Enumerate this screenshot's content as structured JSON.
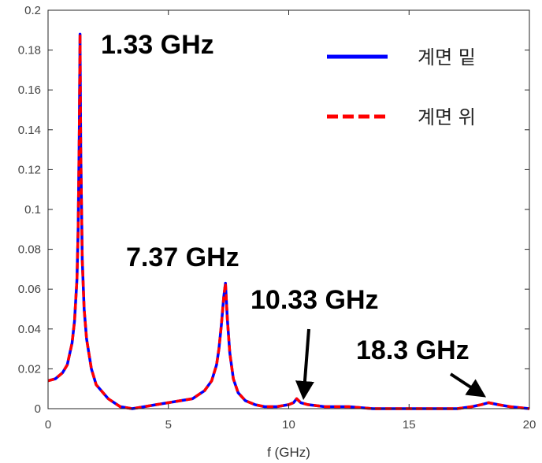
{
  "chart_data": {
    "type": "line",
    "xlabel": "f (GHz)",
    "ylabel": "",
    "xlim": [
      0,
      20
    ],
    "ylim": [
      0,
      0.2
    ],
    "x_ticks": [
      0,
      5,
      10,
      15,
      20
    ],
    "x_tick_labels": [
      "0",
      "5",
      "10",
      "15",
      "20"
    ],
    "y_ticks": [
      0,
      0.02,
      0.04,
      0.06,
      0.08,
      0.1,
      0.12,
      0.14,
      0.16,
      0.18,
      0.2
    ],
    "y_tick_labels": [
      "0",
      "0.02",
      "0.04",
      "0.06",
      "0.08",
      "0.1",
      "0.12",
      "0.14",
      "0.16",
      "0.18",
      "0.2"
    ],
    "grid": false,
    "legend_position": "top-right",
    "series": [
      {
        "name": "계면 밑",
        "color": "#0000ff",
        "style": "solid",
        "x": [
          0,
          0.3,
          0.6,
          0.8,
          1.0,
          1.1,
          1.2,
          1.25,
          1.3,
          1.33,
          1.36,
          1.42,
          1.5,
          1.6,
          1.8,
          2.0,
          2.5,
          3.0,
          3.5,
          4.0,
          4.5,
          5.0,
          5.5,
          6.0,
          6.5,
          6.8,
          7.0,
          7.1,
          7.2,
          7.3,
          7.37,
          7.45,
          7.55,
          7.7,
          7.9,
          8.2,
          8.6,
          9.0,
          9.5,
          10.0,
          10.2,
          10.33,
          10.5,
          10.8,
          11.5,
          12.5,
          13.5,
          15.0,
          16.0,
          17.0,
          17.6,
          18.0,
          18.3,
          18.7,
          19.2,
          20.0
        ],
        "values": [
          0.014,
          0.015,
          0.018,
          0.022,
          0.033,
          0.044,
          0.065,
          0.09,
          0.14,
          0.188,
          0.13,
          0.075,
          0.05,
          0.035,
          0.02,
          0.012,
          0.005,
          0.001,
          0.0,
          0.001,
          0.002,
          0.003,
          0.004,
          0.005,
          0.009,
          0.014,
          0.022,
          0.03,
          0.042,
          0.056,
          0.063,
          0.045,
          0.028,
          0.015,
          0.008,
          0.004,
          0.002,
          0.001,
          0.001,
          0.002,
          0.003,
          0.005,
          0.003,
          0.002,
          0.001,
          0.001,
          0.0,
          0.0,
          0.0,
          0.0,
          0.001,
          0.002,
          0.003,
          0.002,
          0.001,
          0.0
        ]
      },
      {
        "name": "계면 위",
        "color": "#ff0000",
        "style": "dashed",
        "x": [
          0,
          0.3,
          0.6,
          0.8,
          1.0,
          1.1,
          1.2,
          1.25,
          1.3,
          1.33,
          1.36,
          1.42,
          1.5,
          1.6,
          1.8,
          2.0,
          2.5,
          3.0,
          3.5,
          4.0,
          4.5,
          5.0,
          5.5,
          6.0,
          6.5,
          6.8,
          7.0,
          7.1,
          7.2,
          7.3,
          7.37,
          7.45,
          7.55,
          7.7,
          7.9,
          8.2,
          8.6,
          9.0,
          9.5,
          10.0,
          10.2,
          10.33,
          10.5,
          10.8,
          11.5,
          12.5,
          13.5,
          15.0,
          16.0,
          17.0,
          17.6,
          18.0,
          18.3,
          18.7,
          19.2,
          20.0
        ],
        "values": [
          0.014,
          0.015,
          0.018,
          0.022,
          0.033,
          0.044,
          0.065,
          0.09,
          0.14,
          0.188,
          0.13,
          0.075,
          0.05,
          0.035,
          0.02,
          0.012,
          0.005,
          0.001,
          0.0,
          0.001,
          0.002,
          0.003,
          0.004,
          0.005,
          0.009,
          0.014,
          0.022,
          0.03,
          0.042,
          0.056,
          0.063,
          0.045,
          0.028,
          0.015,
          0.008,
          0.004,
          0.002,
          0.001,
          0.001,
          0.002,
          0.003,
          0.005,
          0.003,
          0.002,
          0.001,
          0.001,
          0.0,
          0.0,
          0.0,
          0.0,
          0.001,
          0.002,
          0.003,
          0.002,
          0.001,
          0.0
        ]
      }
    ],
    "annotations": [
      {
        "text": "1.33 GHz",
        "x": 1.33,
        "y": 0.188,
        "arrow": false
      },
      {
        "text": "7.37 GHz",
        "x": 7.37,
        "y": 0.063,
        "arrow": false
      },
      {
        "text": "10.33 GHz",
        "x": 10.33,
        "y": 0.005,
        "arrow": true
      },
      {
        "text": "18.3 GHz",
        "x": 18.3,
        "y": 0.003,
        "arrow": true
      }
    ]
  }
}
